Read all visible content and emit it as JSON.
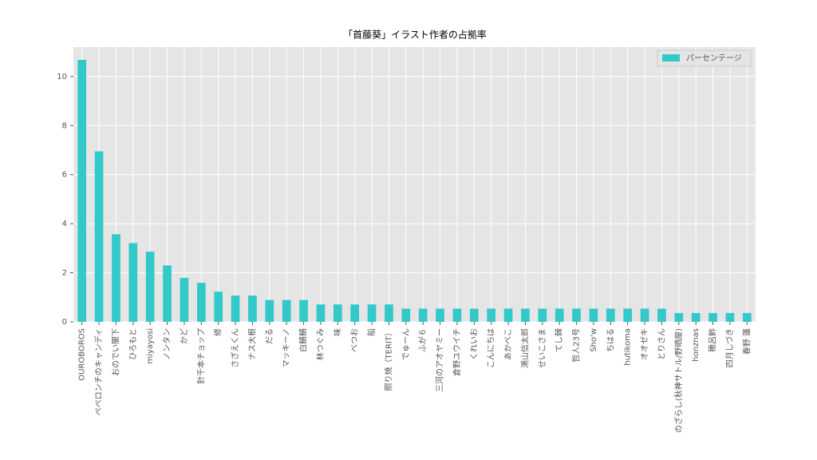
{
  "chart_data": {
    "type": "bar",
    "title": "「首藤葵」イラスト作者の占拠率",
    "categories": [
      "OUROBOROS",
      "ペペロンチのキャンディ",
      "おのでい闇下",
      "ひろもと",
      "miyayosi",
      "ノンタン",
      "かど",
      "針千本チョップ",
      "修",
      "さざえくん",
      "ナス大根",
      "だる",
      "マッキーノ",
      "白鯖鯖",
      "林つぐみ",
      "味",
      "べつお",
      "船",
      "照り焼（TERIT）",
      "でゅーん",
      "ふが６",
      "三河のアオヤミー",
      "倉野ユウイチ",
      "くれいお",
      "こんにちは",
      "あかべこ",
      "鴻山信太郎",
      "せいこさま",
      "てし棘",
      "哲人23号",
      "Sho'w",
      "ちはる",
      "hutikoma",
      "オオゼキ",
      "とりさん",
      "のざらし(秋神サトル/野晒屋)",
      "honznas",
      "穂呂鮓",
      "四月しづき",
      "春野 蓮"
    ],
    "series": [
      {
        "name": "パーセンテージ",
        "color": "#33c9c9",
        "values": [
          10.68,
          6.95,
          3.57,
          3.21,
          2.86,
          2.3,
          1.79,
          1.59,
          1.23,
          1.07,
          1.07,
          0.89,
          0.89,
          0.89,
          0.71,
          0.71,
          0.71,
          0.71,
          0.71,
          0.54,
          0.54,
          0.54,
          0.54,
          0.54,
          0.54,
          0.54,
          0.54,
          0.54,
          0.54,
          0.54,
          0.54,
          0.54,
          0.54,
          0.54,
          0.54,
          0.36,
          0.36,
          0.36,
          0.36,
          0.36
        ]
      }
    ],
    "ylim": [
      0,
      11.2
    ],
    "yticks": [
      0,
      2,
      4,
      6,
      8,
      10
    ],
    "grid": true,
    "legend": "upper right"
  }
}
